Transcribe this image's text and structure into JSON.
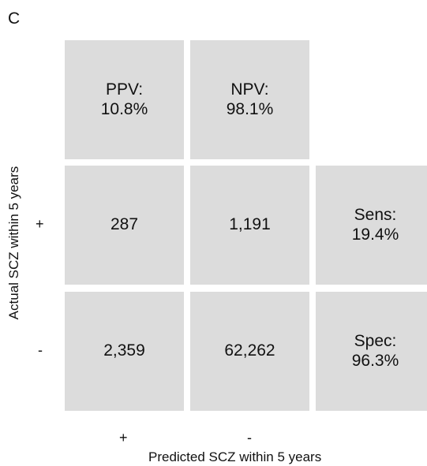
{
  "panel_label": "C",
  "chart_data": {
    "type": "table",
    "xlabel": "Predicted SCZ within 5 years",
    "ylabel": "Actual SCZ within 5 years",
    "x_categories": [
      "+",
      "-"
    ],
    "y_categories": [
      "+",
      "-"
    ],
    "matrix": [
      [
        "287",
        "1,191"
      ],
      [
        "2,359",
        "62,262"
      ]
    ],
    "values": [
      [
        287,
        1191
      ],
      [
        2359,
        62262
      ]
    ],
    "column_metrics": [
      {
        "name": "PPV:",
        "value": "10.8%"
      },
      {
        "name": "NPV:",
        "value": "98.1%"
      }
    ],
    "row_metrics": [
      {
        "name": "Sens:",
        "value": "19.4%"
      },
      {
        "name": "Spec:",
        "value": "96.3%"
      }
    ],
    "colors": {
      "cell_fill": "#dcdcdc",
      "text": "#111111"
    }
  }
}
